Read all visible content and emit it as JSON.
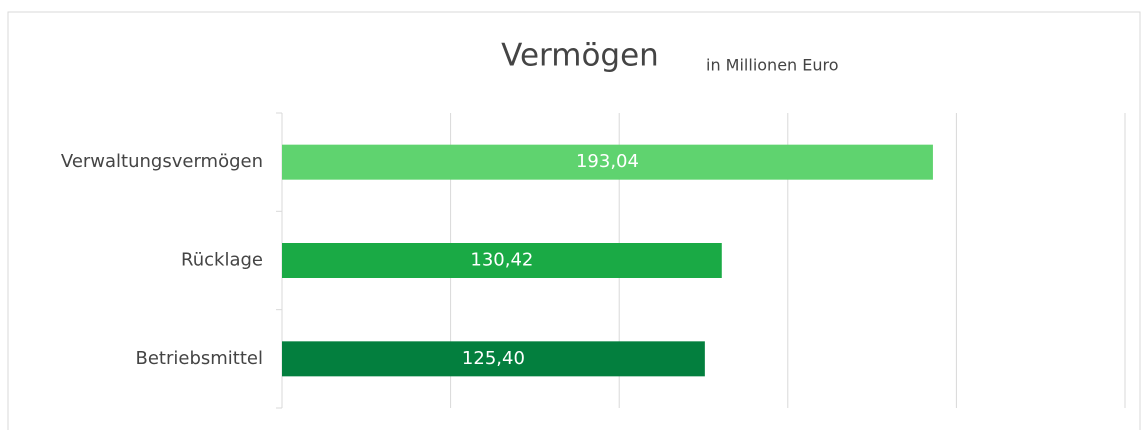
{
  "chart_data": {
    "type": "bar",
    "orientation": "horizontal",
    "title": "Vermögen",
    "subtitle": "in Millionen Euro",
    "categories": [
      "Verwaltungsvermögen",
      "Rücklage",
      "Betriebsmittel"
    ],
    "values": [
      193.04,
      130.42,
      125.4
    ],
    "value_labels": [
      "193,04",
      "130,42",
      "125,40"
    ],
    "colors": [
      "#5fd36f",
      "#1aaa45",
      "#037f3e"
    ],
    "xlim": [
      0,
      250
    ],
    "xticks": [
      0,
      50,
      100,
      150,
      200,
      250
    ],
    "grid": true
  }
}
